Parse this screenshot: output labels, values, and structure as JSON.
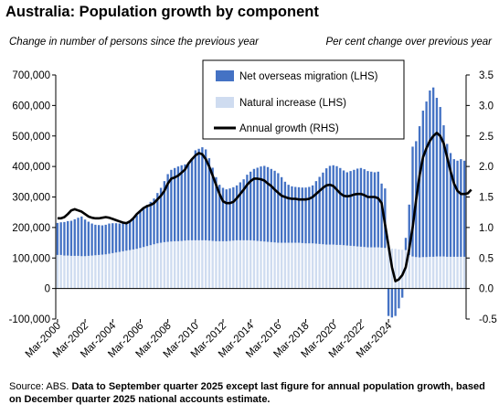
{
  "title": "Australia: Population growth by component",
  "lhs_caption": "Change in number of persons since the previous year",
  "rhs_caption": "Per cent change over previous year",
  "source": {
    "prefix": "Source: ABS. ",
    "bold": "Data to September quarter 2025 except last figure for annual population growth, based on December quarter 2025 national accounts estimate."
  },
  "colors": {
    "overseas": "#4472C4",
    "natural": "#CFDCF0",
    "growth": "#000000",
    "axis": "#000000"
  },
  "chart_data": {
    "type": "bar",
    "title": "Australia: Population growth by component",
    "ylabel": "Change in number of persons since the previous year",
    "y2label": "Per cent change over previous year",
    "ylim": [
      -100000,
      700000
    ],
    "y2lim": [
      -0.5,
      3.5
    ],
    "yticks": [
      "700,000",
      "600,000",
      "500,000",
      "400,000",
      "300,000",
      "200,000",
      "100,000",
      "0",
      "-100,000"
    ],
    "y2ticks": [
      "3.5",
      "3.0",
      "2.5",
      "2.0",
      "1.5",
      "1.0",
      "0.5",
      "0.0",
      "-0.5"
    ],
    "xticks": [
      "Mar-2000",
      "Mar-2002",
      "Mar-2004",
      "Mar-2006",
      "Mar-2008",
      "Mar-2010",
      "Mar-2012",
      "Mar-2014",
      "Mar-2016",
      "Mar-2018",
      "Mar-2020",
      "Mar-2022",
      "Mar-2024"
    ],
    "grid": false,
    "legend_position": "top-center",
    "legend": [
      "Net overseas migration (LHS)",
      "Natural increase (LHS)",
      "Annual growth (RHS)"
    ],
    "x_start": "Mar-2000",
    "frequency": "quarterly",
    "series": [
      {
        "name": "Net overseas migration (LHS)",
        "axis": "left",
        "stack": "bars",
        "values": [
          105000,
          107000,
          110000,
          113000,
          115000,
          120000,
          125000,
          130000,
          120000,
          112000,
          105000,
          100000,
          98000,
          96000,
          97000,
          99000,
          98000,
          96000,
          93000,
          92000,
          92000,
          95000,
          100000,
          110000,
          118000,
          128000,
          135000,
          142000,
          150000,
          165000,
          180000,
          200000,
          222000,
          235000,
          240000,
          245000,
          248000,
          250000,
          255000,
          265000,
          295000,
          300000,
          305000,
          298000,
          270000,
          240000,
          210000,
          185000,
          175000,
          170000,
          172000,
          175000,
          180000,
          190000,
          200000,
          215000,
          225000,
          235000,
          240000,
          245000,
          248000,
          245000,
          240000,
          235000,
          228000,
          215000,
          200000,
          190000,
          185000,
          183000,
          182000,
          182000,
          183000,
          185000,
          190000,
          205000,
          220000,
          235000,
          250000,
          258000,
          260000,
          258000,
          252000,
          245000,
          240000,
          245000,
          250000,
          255000,
          258000,
          255000,
          250000,
          248000,
          246000,
          248000,
          210000,
          195000,
          -90000,
          -95000,
          -90000,
          -65000,
          -30000,
          40000,
          165000,
          360000,
          380000,
          430000,
          480000,
          510000,
          545000,
          555000,
          520000,
          490000,
          430000,
          370000,
          340000,
          320000,
          315000,
          320000,
          315000
        ]
      },
      {
        "name": "Natural increase (LHS)",
        "axis": "left",
        "stack": "bars",
        "values": [
          110000,
          110000,
          108000,
          108000,
          107000,
          107000,
          107000,
          106000,
          106000,
          107000,
          108000,
          109000,
          110000,
          111000,
          112000,
          114000,
          116000,
          118000,
          120000,
          122000,
          124000,
          126000,
          128000,
          130000,
          133000,
          136000,
          139000,
          142000,
          145000,
          148000,
          150000,
          152000,
          153000,
          154000,
          155000,
          155000,
          156000,
          157000,
          158000,
          158000,
          158000,
          158000,
          158000,
          158000,
          157000,
          156000,
          155000,
          155000,
          155000,
          155000,
          156000,
          157000,
          158000,
          158000,
          158000,
          158000,
          158000,
          157000,
          156000,
          155000,
          154000,
          153000,
          152000,
          151000,
          150000,
          150000,
          150000,
          150000,
          150000,
          150000,
          150000,
          149000,
          148000,
          148000,
          148000,
          147000,
          146000,
          145000,
          144000,
          144000,
          144000,
          143000,
          143000,
          142000,
          141000,
          140000,
          139000,
          138000,
          137000,
          136000,
          135000,
          135000,
          135000,
          135000,
          134000,
          133000,
          132000,
          131000,
          130000,
          128000,
          127000,
          126000,
          110000,
          105000,
          103000,
          102000,
          103000,
          103000,
          104000,
          104000,
          105000,
          105000,
          105000,
          104000,
          104000,
          104000,
          104000,
          104000,
          104000
        ]
      },
      {
        "name": "Annual growth (RHS)",
        "axis": "right",
        "type": "line",
        "values": [
          1.15,
          1.15,
          1.17,
          1.22,
          1.28,
          1.3,
          1.28,
          1.26,
          1.22,
          1.18,
          1.16,
          1.15,
          1.15,
          1.16,
          1.17,
          1.16,
          1.14,
          1.12,
          1.1,
          1.08,
          1.07,
          1.1,
          1.15,
          1.22,
          1.27,
          1.32,
          1.35,
          1.37,
          1.4,
          1.46,
          1.52,
          1.6,
          1.72,
          1.8,
          1.82,
          1.85,
          1.9,
          1.95,
          2.05,
          2.12,
          2.18,
          2.22,
          2.2,
          2.12,
          2.0,
          1.85,
          1.7,
          1.55,
          1.43,
          1.4,
          1.4,
          1.42,
          1.48,
          1.55,
          1.62,
          1.7,
          1.76,
          1.8,
          1.8,
          1.79,
          1.77,
          1.72,
          1.68,
          1.62,
          1.57,
          1.52,
          1.5,
          1.48,
          1.47,
          1.47,
          1.46,
          1.46,
          1.46,
          1.47,
          1.5,
          1.55,
          1.6,
          1.65,
          1.69,
          1.7,
          1.68,
          1.62,
          1.56,
          1.52,
          1.51,
          1.52,
          1.54,
          1.55,
          1.55,
          1.53,
          1.5,
          1.5,
          1.5,
          1.48,
          1.4,
          1.05,
          0.7,
          0.35,
          0.12,
          0.15,
          0.22,
          0.35,
          0.65,
          1.0,
          1.45,
          1.85,
          2.15,
          2.3,
          2.42,
          2.5,
          2.55,
          2.5,
          2.38,
          2.15,
          1.92,
          1.72,
          1.6,
          1.55,
          1.55,
          1.56,
          1.62
        ]
      }
    ]
  }
}
